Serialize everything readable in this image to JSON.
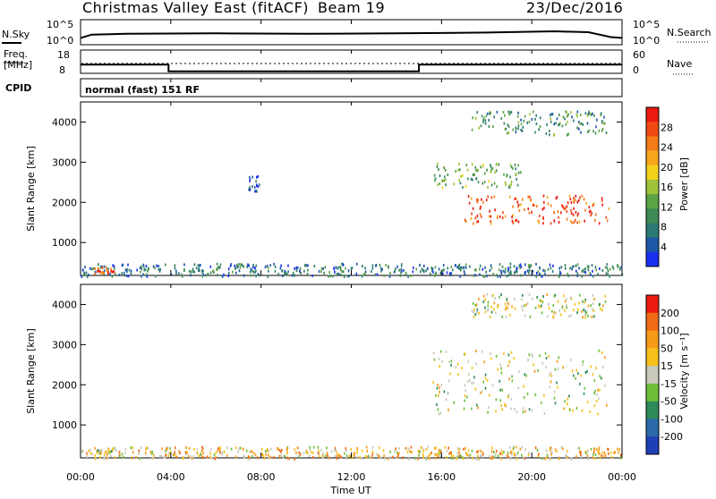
{
  "header": {
    "title": "Christmas Valley East (fitACF)",
    "beam": "Beam 19",
    "date": "23/Dec/2016"
  },
  "nsky_panel": {
    "left_label": "N.Sky",
    "left_ticks": [
      "10^5",
      "10^0"
    ],
    "right_label": "N.Search",
    "right_ticks": [
      "10^5",
      "10^0"
    ]
  },
  "freq_panel": {
    "left_label_1": "Freq.",
    "left_label_2": "[MHz]",
    "left_ticks": [
      "18",
      "8"
    ],
    "right_label": "Nave",
    "right_ticks": [
      "60",
      "0"
    ]
  },
  "cpid_panel": {
    "label": "CPID",
    "mode": "normal (fast) 151 RF"
  },
  "power_panel": {
    "ylabel": "Slant Range [km]",
    "yticks": [
      "4000",
      "3000",
      "2000",
      "1000"
    ],
    "colorbar_label": "Power [dB]",
    "colorbar_ticks": [
      "28",
      "24",
      "20",
      "16",
      "12",
      "8",
      "4"
    ],
    "colors": [
      "#1a2ff0",
      "#1d57a8",
      "#2b7a74",
      "#3e8a55",
      "#5ca444",
      "#9fc33a",
      "#f4d21c",
      "#f7a81a",
      "#f57a18",
      "#f04a14",
      "#ea1a10"
    ]
  },
  "velocity_panel": {
    "ylabel": "Slant Range [km]",
    "yticks": [
      "4000",
      "3000",
      "2000",
      "1000"
    ],
    "colorbar_label": "Velocity [m s⁻¹]",
    "colorbar_ticks": [
      "200",
      "100",
      "50",
      "15",
      "-15",
      "-50",
      "-100",
      "-200"
    ],
    "colors": [
      "#1e3fb8",
      "#2a6aa8",
      "#2e8a58",
      "#6fbf3a",
      "#c9c9bd",
      "#f5c11a",
      "#f79a1a",
      "#f06a16",
      "#ea1a10"
    ]
  },
  "x_axis": {
    "ticks": [
      "00:00",
      "04:00",
      "08:00",
      "12:00",
      "16:00",
      "20:00",
      "00:00"
    ],
    "label": "Time UT"
  },
  "chart_data": [
    {
      "type": "line",
      "series": [
        {
          "x": [
            0,
            0.5,
            2,
            6,
            10,
            14,
            18,
            21,
            22.5,
            23,
            23.5,
            24
          ],
          "values": [
            1.0,
            1.8,
            2.0,
            2.1,
            2.0,
            2.1,
            2.3,
            2.6,
            2.4,
            1.8,
            1.2,
            1.0
          ]
        }
      ],
      "xlim": [
        0,
        24
      ]
    },
    {
      "type": "line",
      "series": [
        {
          "x": [
            0,
            3.9,
            3.9,
            15.0,
            15.0,
            24
          ],
          "values": [
            13.5,
            13.5,
            8.8,
            8.8,
            13.5,
            13.5
          ]
        }
      ],
      "xlim": [
        0,
        24
      ],
      "ylim": [
        8,
        18
      ]
    },
    {
      "type": "heatmap",
      "xlim": [
        0,
        24
      ],
      "ylim": [
        180,
        4500
      ],
      "regions": [
        {
          "t0": 0.0,
          "t1": 24.0,
          "r0": 180,
          "r1": 500,
          "level": 2
        },
        {
          "t0": 0.6,
          "t1": 1.5,
          "r0": 250,
          "r1": 420,
          "level": 9
        },
        {
          "t0": 7.4,
          "t1": 7.9,
          "r0": 2300,
          "r1": 2700,
          "level": 1
        },
        {
          "t0": 15.6,
          "t1": 19.5,
          "r0": 2400,
          "r1": 3000,
          "level": 4
        },
        {
          "t0": 17.0,
          "t1": 23.4,
          "r0": 1500,
          "r1": 2200,
          "level": 9
        },
        {
          "t0": 17.3,
          "t1": 23.3,
          "r0": 3700,
          "r1": 4300,
          "level": 3
        }
      ]
    },
    {
      "type": "heatmap",
      "xlim": [
        0,
        24
      ],
      "ylim": [
        180,
        4500
      ],
      "regions": [
        {
          "t0": 0.0,
          "t1": 24.0,
          "r0": 180,
          "r1": 480,
          "level": 5
        },
        {
          "t0": 0.7,
          "t1": 1.4,
          "r0": 250,
          "r1": 420,
          "level": 4
        },
        {
          "t0": 15.6,
          "t1": 23.3,
          "r0": 1300,
          "r1": 2900,
          "level": 4
        },
        {
          "t0": 17.3,
          "t1": 23.3,
          "r0": 3700,
          "r1": 4300,
          "level": 4
        }
      ]
    }
  ]
}
